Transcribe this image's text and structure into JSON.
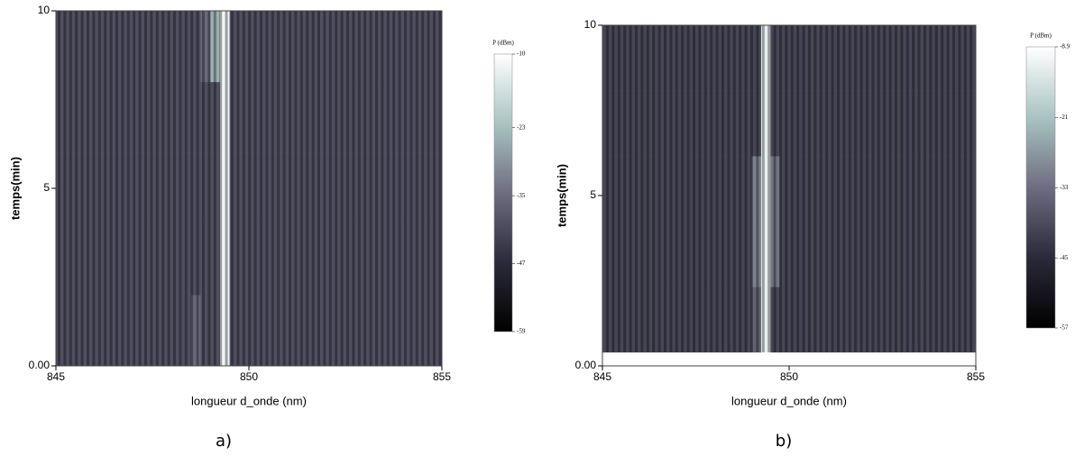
{
  "chart_data": [
    {
      "type": "heatmap",
      "xlabel": "longueur d_onde (nm)",
      "ylabel": "temps(min)",
      "caption": "a)",
      "colorbar_label": "P (dBm)",
      "xlim": [
        845,
        855
      ],
      "ylim": [
        0,
        10
      ],
      "xticks": [
        845,
        850,
        855
      ],
      "yticks": [
        {
          "value": 0,
          "label": "0.00"
        },
        5,
        10
      ],
      "zlim": [
        -59,
        -10
      ],
      "zticks": [
        -10,
        -23,
        -35,
        -47,
        -59
      ],
      "colors": [
        "#000000",
        "#2b2a3a",
        "#6e6d80",
        "#a9c4c2",
        "#ffffff"
      ],
      "xbins": [
        845,
        845.25,
        845.5,
        845.75,
        846,
        846.25,
        846.5,
        846.75,
        847,
        847.25,
        847.5,
        847.75,
        848,
        848.25,
        848.5,
        848.75,
        849,
        849.25,
        849.5,
        849.75,
        850,
        850.25,
        850.5,
        850.75,
        851,
        851.25,
        851.5,
        851.75,
        852,
        852.25,
        852.5,
        852.75,
        853,
        853.25,
        853.5,
        853.75,
        854,
        854.25,
        854.5,
        854.75,
        855
      ],
      "ybins": [
        0,
        2,
        4,
        6,
        8,
        10
      ],
      "z": [
        [
          -40,
          -40,
          -40,
          -40,
          -40,
          -40,
          -40,
          -40,
          -40,
          -40,
          -40,
          -40,
          -40,
          -40,
          -35,
          -40,
          -40,
          -12,
          -40,
          -40,
          -40,
          -40,
          -40,
          -40,
          -40,
          -40,
          -40,
          -40,
          -40,
          -40,
          -40,
          -40,
          -40,
          -40,
          -40,
          -40,
          -40,
          -40,
          -40,
          -40
        ],
        [
          -40,
          -40,
          -40,
          -40,
          -40,
          -40,
          -40,
          -40,
          -40,
          -40,
          -40,
          -40,
          -40,
          -40,
          -40,
          -40,
          -40,
          -12,
          -40,
          -40,
          -40,
          -40,
          -40,
          -40,
          -40,
          -40,
          -40,
          -40,
          -40,
          -40,
          -40,
          -40,
          -40,
          -40,
          -40,
          -40,
          -40,
          -40,
          -40,
          -40
        ],
        [
          -40,
          -40,
          -40,
          -40,
          -40,
          -40,
          -40,
          -40,
          -40,
          -40,
          -40,
          -40,
          -40,
          -40,
          -40,
          -40,
          -40,
          -12,
          -40,
          -40,
          -40,
          -40,
          -40,
          -40,
          -40,
          -40,
          -40,
          -40,
          -40,
          -40,
          -40,
          -40,
          -40,
          -40,
          -40,
          -40,
          -40,
          -40,
          -40,
          -40
        ],
        [
          -40,
          -40,
          -40,
          -40,
          -40,
          -40,
          -40,
          -40,
          -40,
          -40,
          -40,
          -40,
          -40,
          -40,
          -40,
          -40,
          -40,
          -12,
          -40,
          -40,
          -40,
          -40,
          -40,
          -40,
          -40,
          -40,
          -40,
          -40,
          -40,
          -40,
          -40,
          -40,
          -40,
          -40,
          -40,
          -40,
          -40,
          -40,
          -40,
          -40
        ],
        [
          -40,
          -40,
          -40,
          -40,
          -40,
          -40,
          -40,
          -40,
          -40,
          -40,
          -40,
          -40,
          -40,
          -40,
          -40,
          -35,
          -25,
          -12,
          -40,
          -40,
          -40,
          -40,
          -40,
          -40,
          -40,
          -40,
          -40,
          -40,
          -40,
          -40,
          -40,
          -40,
          -40,
          -40,
          -40,
          -40,
          -40,
          -40,
          -40,
          -40
        ]
      ]
    },
    {
      "type": "heatmap",
      "xlabel": "longueur d_onde (nm)",
      "ylabel": "temps(min)",
      "caption": "b)",
      "colorbar_label": "P (dBm)",
      "xlim": [
        845,
        855
      ],
      "ylim": [
        0,
        10
      ],
      "xticks": [
        845,
        850,
        855
      ],
      "yticks": [
        {
          "value": 0,
          "label": "0.00"
        },
        5,
        10
      ],
      "zlim": [
        -57,
        -8.9
      ],
      "zticks": [
        -8.9,
        -21,
        -33,
        -45,
        -57
      ],
      "colors": [
        "#000000",
        "#2b2a3a",
        "#6e6d80",
        "#a9c4c2",
        "#ffffff"
      ],
      "xbins": [
        845,
        845.25,
        845.5,
        845.75,
        846,
        846.25,
        846.5,
        846.75,
        847,
        847.25,
        847.5,
        847.75,
        848,
        848.25,
        848.5,
        848.75,
        849,
        849.25,
        849.5,
        849.75,
        850,
        850.25,
        850.5,
        850.75,
        851,
        851.25,
        851.5,
        851.75,
        852,
        852.25,
        852.5,
        852.75,
        853,
        853.25,
        853.5,
        853.75,
        854,
        854.25,
        854.5,
        854.75,
        855
      ],
      "ybins": [
        0.4,
        2.32,
        4.24,
        6.16,
        8.08,
        10
      ],
      "z": [
        [
          -40,
          -40,
          -40,
          -40,
          -40,
          -40,
          -40,
          -40,
          -40,
          -40,
          -40,
          -40,
          -40,
          -40,
          -40,
          -40,
          -35,
          -12,
          -40,
          -40,
          -40,
          -40,
          -40,
          -40,
          -40,
          -40,
          -40,
          -40,
          -40,
          -40,
          -40,
          -40,
          -40,
          -40,
          -40,
          -40,
          -40,
          -40,
          -40,
          -40
        ],
        [
          -40,
          -40,
          -40,
          -40,
          -40,
          -40,
          -40,
          -40,
          -40,
          -40,
          -40,
          -40,
          -40,
          -40,
          -40,
          -40,
          -30,
          -12,
          -32,
          -40,
          -40,
          -40,
          -40,
          -40,
          -40,
          -40,
          -40,
          -40,
          -40,
          -40,
          -40,
          -40,
          -40,
          -40,
          -40,
          -40,
          -40,
          -40,
          -40,
          -40
        ],
        [
          -40,
          -40,
          -40,
          -40,
          -40,
          -40,
          -40,
          -40,
          -40,
          -40,
          -40,
          -40,
          -40,
          -40,
          -40,
          -40,
          -30,
          -12,
          -32,
          -40,
          -40,
          -40,
          -40,
          -40,
          -40,
          -40,
          -40,
          -40,
          -40,
          -40,
          -40,
          -40,
          -40,
          -40,
          -40,
          -40,
          -40,
          -40,
          -40,
          -40
        ],
        [
          -40,
          -40,
          -40,
          -40,
          -40,
          -40,
          -40,
          -40,
          -40,
          -40,
          -40,
          -40,
          -40,
          -40,
          -40,
          -40,
          -40,
          -12,
          -40,
          -40,
          -40,
          -40,
          -40,
          -40,
          -40,
          -40,
          -40,
          -40,
          -40,
          -40,
          -40,
          -40,
          -40,
          -40,
          -40,
          -40,
          -40,
          -40,
          -40,
          -40
        ],
        [
          -40,
          -40,
          -40,
          -40,
          -40,
          -40,
          -40,
          -40,
          -40,
          -40,
          -40,
          -40,
          -40,
          -40,
          -40,
          -40,
          -40,
          -12,
          -40,
          -40,
          -40,
          -40,
          -40,
          -40,
          -40,
          -40,
          -40,
          -40,
          -40,
          -40,
          -40,
          -40,
          -40,
          -40,
          -40,
          -40,
          -40,
          -40,
          -40,
          -40
        ]
      ]
    }
  ]
}
